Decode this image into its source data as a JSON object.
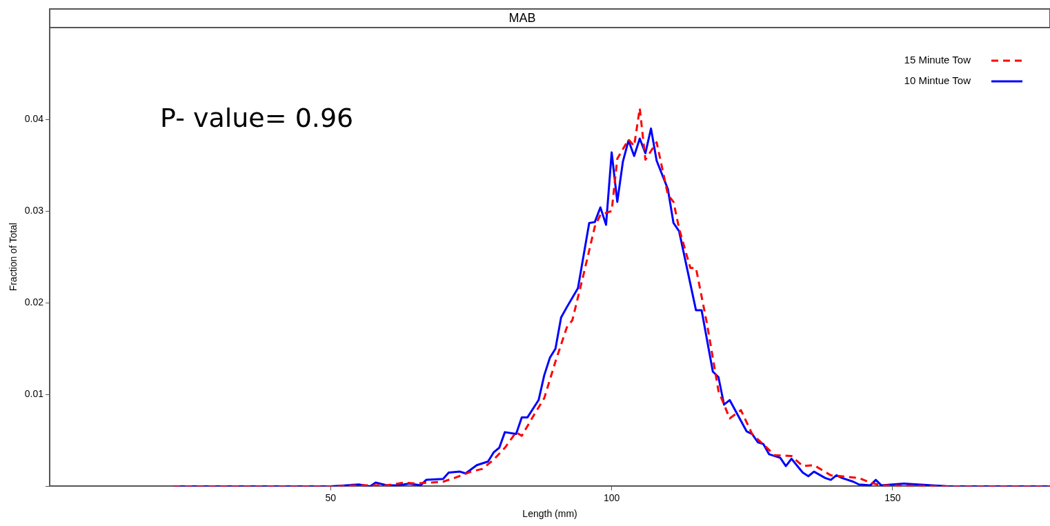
{
  "chart_data": {
    "type": "line",
    "title": "MAB",
    "xlabel": "Length (mm)",
    "ylabel": "Fraction of Total",
    "annotations": [
      "P- value= 0.96"
    ],
    "xlim": [
      0,
      178
    ],
    "xticks": [
      50,
      100,
      150
    ],
    "ylim": [
      0,
      0.05
    ],
    "yticks": [
      {
        "value": 0,
        "label": null
      },
      0.01,
      0.02,
      0.03,
      0.04
    ],
    "grid": false,
    "legend": "top right",
    "marker": "none",
    "series": [
      {
        "name": "15 Minute Tow",
        "color": "#ff0000",
        "line_style": "dashed",
        "x": [
          22,
          30,
          40,
          50,
          55,
          60,
          63,
          65,
          70,
          72,
          75,
          77,
          79,
          81,
          83,
          84,
          86,
          88,
          90,
          92,
          93,
          95,
          97,
          98,
          100,
          101,
          103,
          104,
          105,
          106,
          108,
          110,
          111,
          112,
          114,
          115,
          117,
          119,
          121,
          123,
          125,
          129,
          132,
          134,
          136,
          139,
          144,
          146,
          148,
          160,
          178
        ],
        "values": [
          0,
          0,
          0,
          0,
          0.0001,
          0.0001,
          0.0004,
          0.0003,
          0.0005,
          0.0009,
          0.0016,
          0.0019,
          0.0029,
          0.0042,
          0.0059,
          0.0055,
          0.0076,
          0.0096,
          0.0136,
          0.0173,
          0.0181,
          0.0231,
          0.0283,
          0.0296,
          0.03,
          0.0357,
          0.0378,
          0.0371,
          0.0412,
          0.0356,
          0.0375,
          0.0318,
          0.031,
          0.0281,
          0.0238,
          0.0238,
          0.0176,
          0.0104,
          0.0074,
          0.0083,
          0.0057,
          0.0034,
          0.0033,
          0.0022,
          0.0023,
          0.0012,
          0.0009,
          0.0004,
          0.0001,
          0,
          0
        ]
      },
      {
        "name": "10 Mintue Tow",
        "color": "#0000ff",
        "line_style": "solid",
        "x": [
          22,
          30,
          40,
          50,
          55,
          57,
          58,
          60,
          62,
          64,
          66,
          67,
          70,
          71,
          73,
          74,
          76,
          78,
          79,
          80,
          81,
          83,
          84,
          85,
          87,
          88,
          89,
          90,
          91,
          92,
          94,
          96,
          97,
          98,
          99,
          100,
          101,
          102,
          103,
          104,
          105,
          106,
          107,
          108,
          110,
          111,
          112,
          115,
          116,
          118,
          119,
          120,
          121,
          124,
          125,
          126,
          127,
          128,
          130,
          131,
          132,
          134,
          135,
          136,
          138,
          139,
          140,
          141,
          143,
          144,
          146,
          147,
          148,
          152,
          160,
          178
        ],
        "values": [
          0,
          0,
          0,
          0,
          0.0002,
          0,
          0.0004,
          0.0001,
          0.0001,
          0.0003,
          0.0001,
          0.0007,
          0.0008,
          0.0015,
          0.0016,
          0.0014,
          0.0023,
          0.0027,
          0.0037,
          0.0042,
          0.0059,
          0.0057,
          0.0075,
          0.0075,
          0.0094,
          0.0121,
          0.014,
          0.015,
          0.0184,
          0.0195,
          0.0216,
          0.0287,
          0.0288,
          0.0304,
          0.0285,
          0.0364,
          0.031,
          0.0354,
          0.0377,
          0.036,
          0.0379,
          0.0363,
          0.039,
          0.0355,
          0.0324,
          0.0287,
          0.0278,
          0.0192,
          0.0192,
          0.0125,
          0.0119,
          0.0089,
          0.0094,
          0.006,
          0.0057,
          0.0048,
          0.0046,
          0.0035,
          0.0031,
          0.0022,
          0.003,
          0.0015,
          0.0011,
          0.0016,
          0.0009,
          0.0007,
          0.0012,
          0.0009,
          0.0005,
          0.0002,
          0.0001,
          0.0007,
          0.0001,
          0.0003,
          0,
          0
        ]
      }
    ]
  }
}
